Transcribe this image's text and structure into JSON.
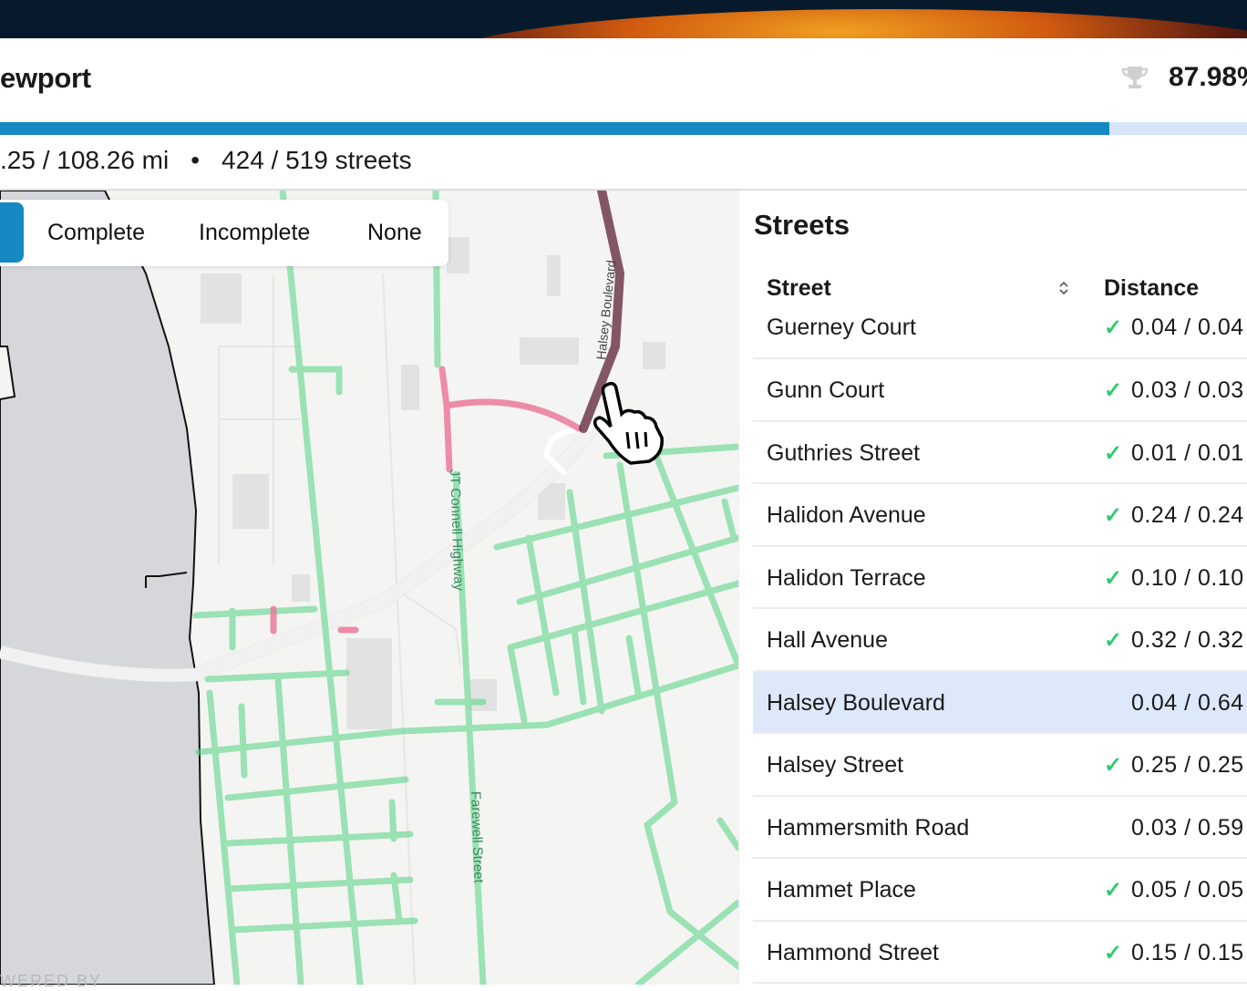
{
  "header": {
    "title": "ewport",
    "completion_percent_label": "87.98%",
    "trophy_icon": "trophy-icon"
  },
  "progress": {
    "percent": 87.98,
    "fill_color": "#1688c4",
    "track_color": "#d6e6f8"
  },
  "stats": {
    "distance": ".25 / 108.26 mi",
    "separator": "•",
    "streets": "424 / 519 streets"
  },
  "map": {
    "filter": {
      "options": [
        "Complete",
        "Incomplete",
        "None"
      ],
      "active_color": "#1688c4"
    },
    "street_labels": [
      "Halsey Boulevard",
      "JT Connell Highway",
      "Farewell Street"
    ],
    "attribution": "WERED BY",
    "colors": {
      "complete": "#5fd68a",
      "incomplete": "#ec7a9a",
      "selected": "#6e3a4a",
      "water": "#d5d7da"
    }
  },
  "panel": {
    "title": "Streets",
    "columns": {
      "street": "Street",
      "distance": "Distance"
    },
    "rows": [
      {
        "name": "Guerney Court",
        "distance": "0.04 / 0.04",
        "complete": true
      },
      {
        "name": "Gunn Court",
        "distance": "0.03 / 0.03",
        "complete": true
      },
      {
        "name": "Guthries Street",
        "distance": "0.01 / 0.01",
        "complete": true
      },
      {
        "name": "Halidon Avenue",
        "distance": "0.24 / 0.24",
        "complete": true
      },
      {
        "name": "Halidon Terrace",
        "distance": "0.10 / 0.10",
        "complete": true
      },
      {
        "name": "Hall Avenue",
        "distance": "0.32 / 0.32",
        "complete": true
      },
      {
        "name": "Halsey Boulevard",
        "distance": "0.04 / 0.64",
        "complete": false,
        "selected": true
      },
      {
        "name": "Halsey Street",
        "distance": "0.25 / 0.25",
        "complete": true
      },
      {
        "name": "Hammersmith Road",
        "distance": "0.03 / 0.59",
        "complete": false
      },
      {
        "name": "Hammet Place",
        "distance": "0.05 / 0.05",
        "complete": true
      },
      {
        "name": "Hammond Street",
        "distance": "0.15 / 0.15",
        "complete": true
      }
    ],
    "check_glyph": "✓"
  }
}
